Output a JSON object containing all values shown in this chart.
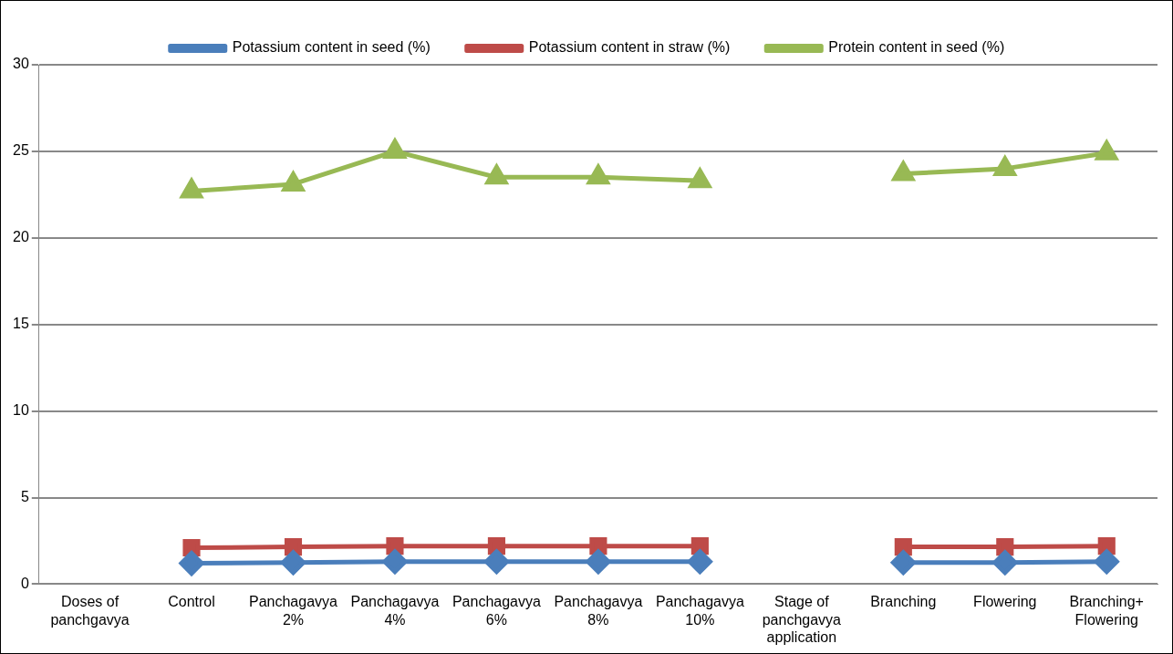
{
  "chart_data": {
    "type": "line",
    "categories": [
      "Doses of panchgavya",
      "Control",
      "Panchagavya 2%",
      "Panchagavya 4%",
      "Panchagavya 6%",
      "Panchagavya 8%",
      "Panchagavya 10%",
      "Stage of panchgavya application",
      "Branching",
      "Flowering",
      "Branching+ Flowering"
    ],
    "series": [
      {
        "name": "Potassium content in seed (%)",
        "color": "#4a7ebb",
        "marker": "diamond",
        "values": [
          null,
          1.2,
          1.25,
          1.3,
          1.3,
          1.3,
          1.3,
          null,
          1.25,
          1.25,
          1.3
        ]
      },
      {
        "name": "Potassium content in straw (%)",
        "color": "#be4b48",
        "marker": "square",
        "values": [
          null,
          2.1,
          2.15,
          2.2,
          2.2,
          2.2,
          2.2,
          null,
          2.15,
          2.15,
          2.2
        ]
      },
      {
        "name": "Protein content in seed (%)",
        "color": "#98b954",
        "marker": "triangle",
        "values": [
          null,
          22.7,
          23.1,
          25.0,
          23.5,
          23.5,
          23.3,
          null,
          23.7,
          24.0,
          24.9
        ]
      }
    ],
    "ylim": [
      0,
      30
    ],
    "yticks": [
      0,
      5,
      10,
      15,
      20,
      25,
      30
    ],
    "grid": "y",
    "legend": "top"
  }
}
